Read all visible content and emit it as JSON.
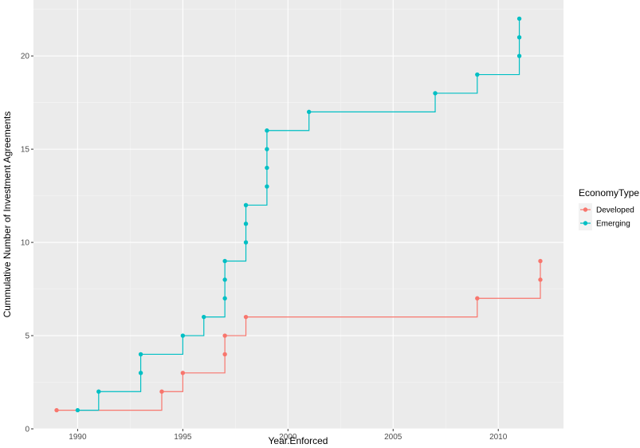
{
  "chart_data": {
    "type": "line",
    "step": true,
    "title": "",
    "xlabel": "Year.Enforced",
    "ylabel": "Cummulative Number of Investment Agreements",
    "xlim": [
      1987.9,
      2013.1
    ],
    "ylim": [
      0,
      23.0
    ],
    "x_ticks": [
      1990,
      1995,
      2000,
      2005,
      2010
    ],
    "y_ticks": [
      0,
      5,
      10,
      15,
      20
    ],
    "grid": true,
    "legend": {
      "title": "EconomyType",
      "position": "right"
    },
    "series": [
      {
        "name": "Developed",
        "color": "#F8766D",
        "points": [
          {
            "x": 1989,
            "y": 1
          },
          {
            "x": 1994,
            "y": 2
          },
          {
            "x": 1995,
            "y": 3
          },
          {
            "x": 1997,
            "y": 4
          },
          {
            "x": 1997,
            "y": 5
          },
          {
            "x": 1998,
            "y": 6
          },
          {
            "x": 2009,
            "y": 7
          },
          {
            "x": 2012,
            "y": 8
          },
          {
            "x": 2012,
            "y": 9
          }
        ]
      },
      {
        "name": "Emerging",
        "color": "#00BFC4",
        "points": [
          {
            "x": 1990,
            "y": 1
          },
          {
            "x": 1991,
            "y": 2
          },
          {
            "x": 1993,
            "y": 3
          },
          {
            "x": 1993,
            "y": 4
          },
          {
            "x": 1995,
            "y": 5
          },
          {
            "x": 1996,
            "y": 6
          },
          {
            "x": 1997,
            "y": 7
          },
          {
            "x": 1997,
            "y": 8
          },
          {
            "x": 1997,
            "y": 9
          },
          {
            "x": 1998,
            "y": 10
          },
          {
            "x": 1998,
            "y": 11
          },
          {
            "x": 1998,
            "y": 12
          },
          {
            "x": 1999,
            "y": 13
          },
          {
            "x": 1999,
            "y": 14
          },
          {
            "x": 1999,
            "y": 15
          },
          {
            "x": 1999,
            "y": 16
          },
          {
            "x": 2001,
            "y": 17
          },
          {
            "x": 2007,
            "y": 18
          },
          {
            "x": 2009,
            "y": 19
          },
          {
            "x": 2011,
            "y": 20
          },
          {
            "x": 2011,
            "y": 21
          },
          {
            "x": 2011,
            "y": 22
          }
        ]
      }
    ]
  }
}
